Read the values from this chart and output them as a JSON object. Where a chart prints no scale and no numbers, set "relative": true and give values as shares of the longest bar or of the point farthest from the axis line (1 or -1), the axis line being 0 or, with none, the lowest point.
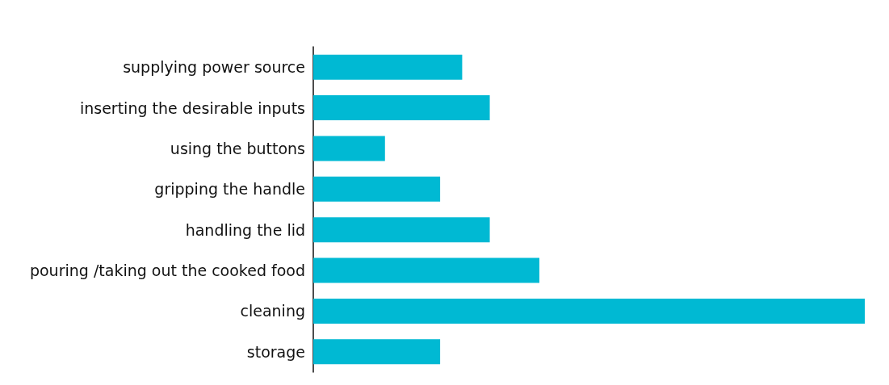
{
  "chart_data": {
    "type": "bar",
    "orientation": "horizontal",
    "relative": true,
    "categories": [
      "supplying power source",
      "inserting the desirable inputs",
      "using the buttons",
      "gripping the handle",
      "handling the lid",
      "pouring /taking out the cooked food",
      "cleaning",
      "storage"
    ],
    "values": [
      0.27,
      0.32,
      0.13,
      0.23,
      0.32,
      0.41,
      1,
      0.23
    ],
    "color": "#00b9d3"
  }
}
